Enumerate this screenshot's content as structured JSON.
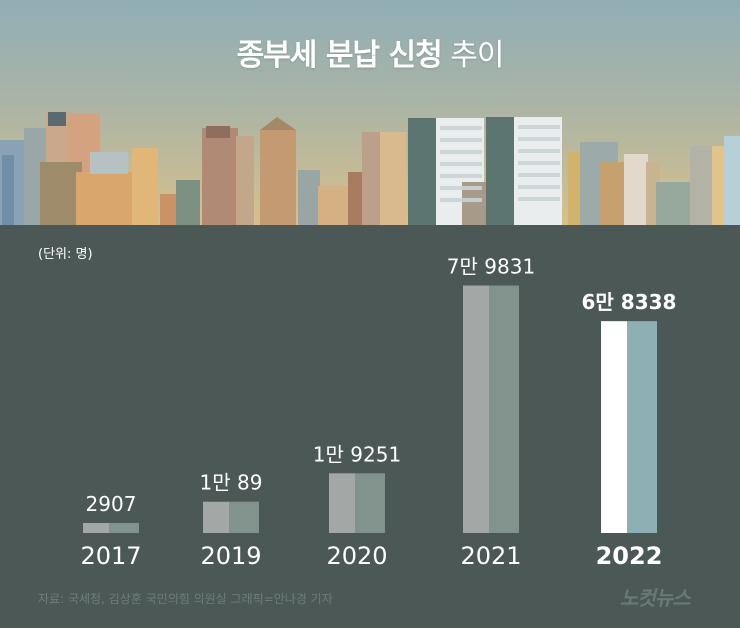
{
  "title_bold": "종부세 분납 신청",
  "title_light": "추이",
  "unit_label": "(단위: 명)",
  "source": "자료: 국세청, 김상훈 국민의힘 의원실   그래픽=안나경 기자",
  "logo": "노컷뉴스",
  "colors": {
    "background": "#4b5856",
    "bar_left": "#a3a8a7",
    "bar_right": "#82928d",
    "highlight_left": "#ffffff",
    "highlight_right": "#8eb0b5",
    "text": "#ffffff"
  },
  "chart_data": {
    "type": "bar",
    "categories": [
      "2017",
      "2019",
      "2020",
      "2021",
      "2022"
    ],
    "values": [
      2907,
      10089,
      19251,
      79831,
      68338
    ],
    "value_labels": [
      "2907",
      "1만 89",
      "1만 9251",
      "7만 9831",
      "6만 8338"
    ],
    "highlight_index": 4,
    "title": "종부세 분납 신청 추이",
    "xlabel": "",
    "ylabel": "",
    "ylim": [
      0,
      80000
    ],
    "grid": false,
    "legend": "none"
  }
}
